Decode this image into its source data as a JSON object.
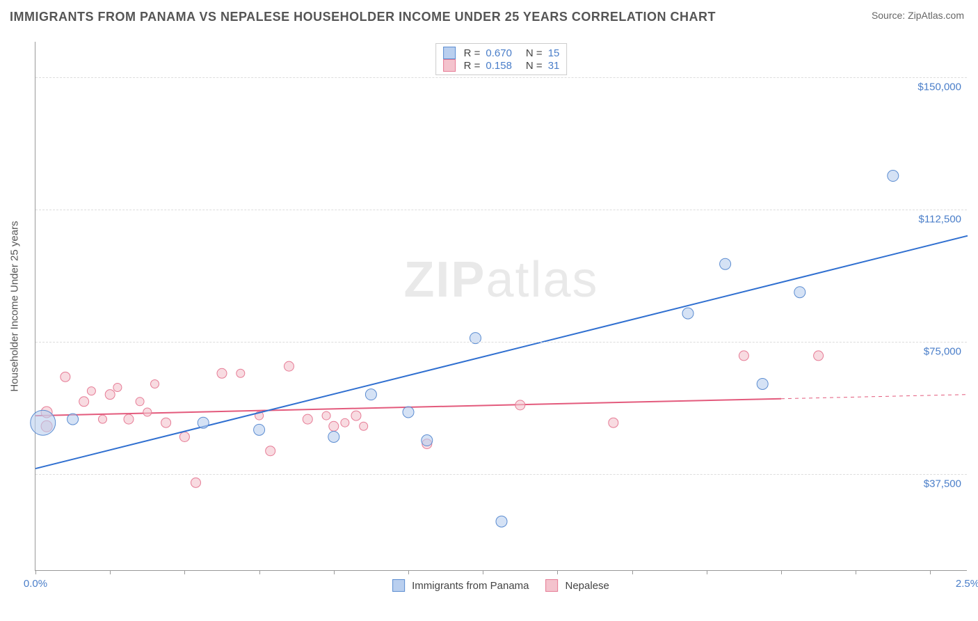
{
  "title": "IMMIGRANTS FROM PANAMA VS NEPALESE HOUSEHOLDER INCOME UNDER 25 YEARS CORRELATION CHART",
  "source": "Source: ZipAtlas.com",
  "watermark": {
    "bold": "ZIP",
    "light": "atlas"
  },
  "yaxis": {
    "label": "Householder Income Under 25 years",
    "min": 10000,
    "max": 160000,
    "ticks": [
      37500,
      75000,
      112500,
      150000
    ],
    "tick_labels": [
      "$37,500",
      "$75,000",
      "$112,500",
      "$150,000"
    ],
    "label_color": "#4a7ec9"
  },
  "xaxis": {
    "min": 0.0,
    "max": 2.5,
    "ticks": [
      0.0,
      0.2,
      0.4,
      0.6,
      0.8,
      1.0,
      1.2,
      1.4,
      1.6,
      1.8,
      2.0,
      2.2,
      2.4
    ],
    "end_labels": {
      "left": "0.0%",
      "right": "2.5%"
    },
    "label_color": "#4a7ec9"
  },
  "series": [
    {
      "name": "Immigrants from Panama",
      "fill": "#b9cfef",
      "stroke": "#5b8cd1",
      "fill_opacity": 0.6,
      "R": "0.670",
      "N": "15",
      "trend": {
        "x1": 0.0,
        "y1": 39000,
        "x2": 2.5,
        "y2": 105000,
        "color": "#2f6fd0",
        "width": 2
      },
      "points": [
        {
          "x": 0.02,
          "y": 52000,
          "r": 18
        },
        {
          "x": 0.1,
          "y": 53000,
          "r": 8
        },
        {
          "x": 0.45,
          "y": 52000,
          "r": 8
        },
        {
          "x": 0.6,
          "y": 50000,
          "r": 8
        },
        {
          "x": 0.8,
          "y": 48000,
          "r": 8
        },
        {
          "x": 0.9,
          "y": 60000,
          "r": 8
        },
        {
          "x": 1.0,
          "y": 55000,
          "r": 8
        },
        {
          "x": 1.05,
          "y": 47000,
          "r": 8
        },
        {
          "x": 1.18,
          "y": 76000,
          "r": 8
        },
        {
          "x": 1.25,
          "y": 24000,
          "r": 8
        },
        {
          "x": 1.75,
          "y": 83000,
          "r": 8
        },
        {
          "x": 1.85,
          "y": 97000,
          "r": 8
        },
        {
          "x": 1.95,
          "y": 63000,
          "r": 8
        },
        {
          "x": 2.05,
          "y": 89000,
          "r": 8
        },
        {
          "x": 2.3,
          "y": 122000,
          "r": 8
        }
      ]
    },
    {
      "name": "Nepalese",
      "fill": "#f4c3cd",
      "stroke": "#e67b95",
      "fill_opacity": 0.6,
      "R": "0.158",
      "N": "31",
      "trend": {
        "x1": 0.0,
        "y1": 54000,
        "x2": 2.5,
        "y2": 60000,
        "color": "#e35a7c",
        "width": 2,
        "dash_from_x": 2.0
      },
      "points": [
        {
          "x": 0.03,
          "y": 55000,
          "r": 8
        },
        {
          "x": 0.03,
          "y": 51000,
          "r": 8
        },
        {
          "x": 0.08,
          "y": 65000,
          "r": 7
        },
        {
          "x": 0.13,
          "y": 58000,
          "r": 7
        },
        {
          "x": 0.15,
          "y": 61000,
          "r": 6
        },
        {
          "x": 0.18,
          "y": 53000,
          "r": 6
        },
        {
          "x": 0.2,
          "y": 60000,
          "r": 7
        },
        {
          "x": 0.22,
          "y": 62000,
          "r": 6
        },
        {
          "x": 0.25,
          "y": 53000,
          "r": 7
        },
        {
          "x": 0.28,
          "y": 58000,
          "r": 6
        },
        {
          "x": 0.32,
          "y": 63000,
          "r": 6
        },
        {
          "x": 0.35,
          "y": 52000,
          "r": 7
        },
        {
          "x": 0.4,
          "y": 48000,
          "r": 7
        },
        {
          "x": 0.43,
          "y": 35000,
          "r": 7
        },
        {
          "x": 0.5,
          "y": 66000,
          "r": 7
        },
        {
          "x": 0.55,
          "y": 66000,
          "r": 6
        },
        {
          "x": 0.63,
          "y": 44000,
          "r": 7
        },
        {
          "x": 0.68,
          "y": 68000,
          "r": 7
        },
        {
          "x": 0.73,
          "y": 53000,
          "r": 7
        },
        {
          "x": 0.78,
          "y": 54000,
          "r": 6
        },
        {
          "x": 0.8,
          "y": 51000,
          "r": 7
        },
        {
          "x": 0.83,
          "y": 52000,
          "r": 6
        },
        {
          "x": 0.86,
          "y": 54000,
          "r": 7
        },
        {
          "x": 0.88,
          "y": 51000,
          "r": 6
        },
        {
          "x": 1.05,
          "y": 46000,
          "r": 7
        },
        {
          "x": 1.3,
          "y": 57000,
          "r": 7
        },
        {
          "x": 1.55,
          "y": 52000,
          "r": 7
        },
        {
          "x": 1.9,
          "y": 71000,
          "r": 7
        },
        {
          "x": 2.1,
          "y": 71000,
          "r": 7
        },
        {
          "x": 0.6,
          "y": 54000,
          "r": 6
        },
        {
          "x": 0.3,
          "y": 55000,
          "r": 6
        }
      ]
    }
  ],
  "colors": {
    "grid": "#dddddd",
    "axis": "#999999",
    "text": "#555555"
  }
}
